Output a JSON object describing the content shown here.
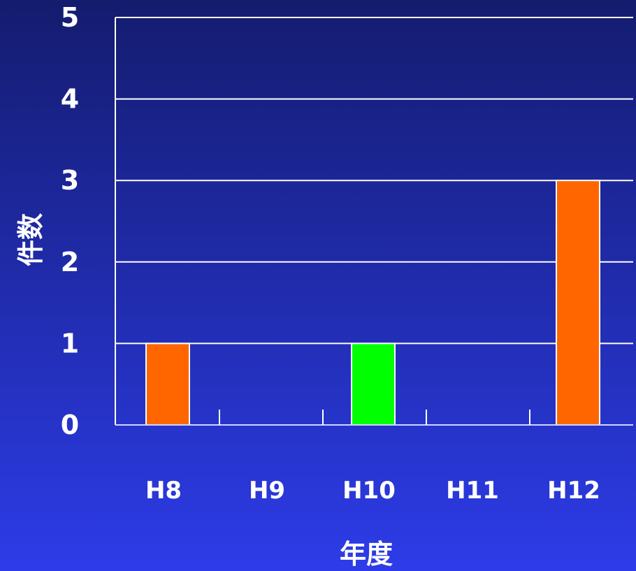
{
  "chart_data": {
    "type": "bar",
    "xlabel": "年度",
    "ylabel": "件数",
    "categories": [
      "H8",
      "H9",
      "H10",
      "H11",
      "H12"
    ],
    "values": [
      1,
      0,
      1,
      0,
      3
    ],
    "bar_colors": [
      "#ff6600",
      "#ff6600",
      "#00ff00",
      "#ff6600",
      "#ff6600"
    ],
    "ylim": [
      0,
      5
    ],
    "yticks": [
      "0",
      "1",
      "2",
      "3",
      "4",
      "5"
    ],
    "grid": true,
    "legend": "none"
  },
  "colors": {
    "grid": "#ffffff",
    "text": "#ffffff"
  }
}
